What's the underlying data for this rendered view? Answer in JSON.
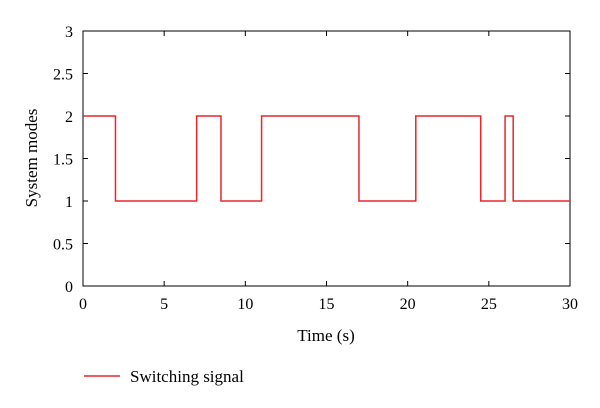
{
  "chart_data": {
    "type": "line",
    "title": "",
    "xlabel": "Time (s)",
    "ylabel": "System modes",
    "xlim": [
      0,
      30
    ],
    "ylim": [
      0,
      3
    ],
    "xticks": [
      0,
      5,
      10,
      15,
      20,
      25,
      30
    ],
    "yticks": [
      0,
      0.5,
      1,
      1.5,
      2,
      2.5,
      3
    ],
    "xtick_labels": [
      "0",
      "5",
      "10",
      "15",
      "20",
      "25",
      "30"
    ],
    "ytick_labels": [
      "0",
      "0.5",
      "1",
      "1.5",
      "2",
      "2.5",
      "3"
    ],
    "grid": false,
    "legend_position": "bottom-left",
    "series": [
      {
        "name": "Switching signal",
        "color": "#e8262c",
        "style": "step",
        "x": [
          0,
          2,
          7,
          8.5,
          11,
          17,
          20.5,
          24.5,
          26,
          26.5,
          30
        ],
        "y": [
          2,
          1,
          2,
          1,
          2,
          1,
          2,
          1,
          2,
          1,
          1
        ]
      }
    ]
  }
}
